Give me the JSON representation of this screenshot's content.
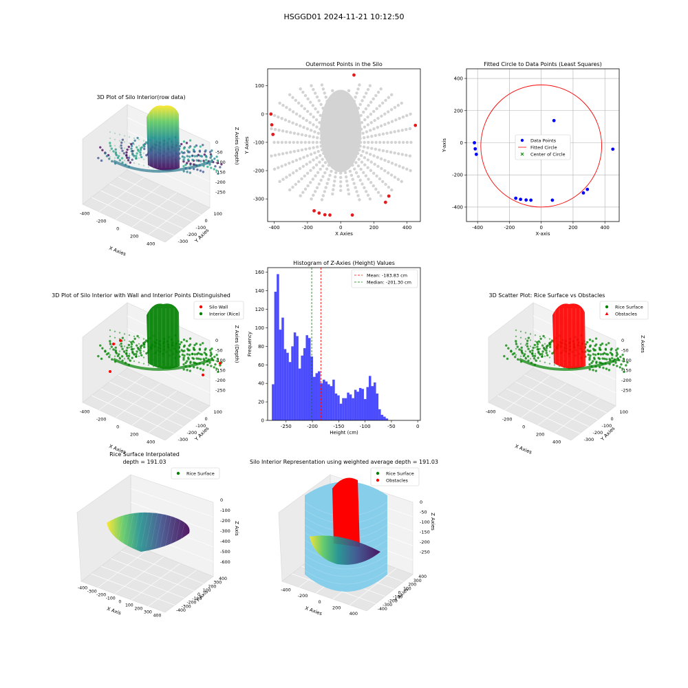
{
  "suptitle": "HSGGD01 2024-11-21 10:12:50",
  "chart_data": [
    {
      "type": "scatter3d",
      "title": "3D Plot of Silo Interior(row data)",
      "xlabel": "X Axies",
      "ylabel": "Y Axies",
      "zlabel": "Z Axies (Depth)",
      "xticks": [
        -400,
        -200,
        0,
        200,
        400
      ],
      "yticks": [
        100,
        0,
        -100,
        -200,
        -300
      ],
      "zticks": [
        0,
        -50,
        -100,
        -150,
        -200,
        -250
      ],
      "colormap": "viridis"
    },
    {
      "type": "scatter",
      "title": "Outermost Points in the Silo",
      "xlabel": "X Axies",
      "ylabel": "Y Axies",
      "xlim": [
        -440,
        480
      ],
      "ylim": [
        -380,
        160
      ],
      "xticks": [
        -400,
        -200,
        0,
        200,
        400
      ],
      "yticks": [
        100,
        0,
        -100,
        -200,
        -300
      ],
      "grid_color": "#d3d3d3",
      "outer_color": "#e41a1c",
      "outer_points": [
        [
          -420,
          0
        ],
        [
          -415,
          -38
        ],
        [
          -408,
          -72
        ],
        [
          80,
          138
        ],
        [
          450,
          -40
        ],
        [
          290,
          -290
        ],
        [
          270,
          -312
        ],
        [
          -160,
          -342
        ],
        [
          -130,
          -350
        ],
        [
          -95,
          -356
        ],
        [
          -65,
          -357
        ],
        [
          70,
          -357
        ]
      ]
    },
    {
      "type": "scatter",
      "title": "Fitted Circle to Data Points (Least Squares)",
      "xlabel": "X-axis",
      "ylabel": "Y-axis",
      "xlim": [
        -470,
        490
      ],
      "ylim": [
        -490,
        460
      ],
      "xticks": [
        -400,
        -200,
        0,
        200,
        400
      ],
      "yticks": [
        400,
        200,
        0,
        -200,
        -400
      ],
      "grid": true,
      "legend": [
        "Data Points",
        "Fitted Circle",
        "Center of Circle"
      ],
      "legend_position": "center",
      "data_points": [
        [
          -420,
          0
        ],
        [
          -415,
          -38
        ],
        [
          -408,
          -72
        ],
        [
          80,
          138
        ],
        [
          450,
          -40
        ],
        [
          290,
          -290
        ],
        [
          265,
          -312
        ],
        [
          -160,
          -345
        ],
        [
          -130,
          -352
        ],
        [
          -95,
          -356
        ],
        [
          -65,
          -357
        ],
        [
          70,
          -357
        ]
      ],
      "circle": {
        "cx": 0,
        "cy": -20,
        "r": 380
      },
      "colors": {
        "points": "#0000ff",
        "circle": "#ff0000",
        "center": "#008000"
      }
    },
    {
      "type": "scatter3d",
      "title": "3D Plot of Silo Interior with Wall and Interior Points Distinguished",
      "xlabel": "X Axies",
      "ylabel": "Y Axies",
      "zlabel": "Z Axies (Depth)",
      "xticks": [
        -400,
        -200,
        0,
        200,
        400
      ],
      "yticks": [
        100,
        0,
        -100,
        -200,
        -300
      ],
      "zticks": [
        0,
        -50,
        -100,
        -150,
        -200,
        -250
      ],
      "legend": [
        "Silo Wall",
        "Interior (Rice)"
      ],
      "legend_position": "upper right"
    },
    {
      "type": "histogram",
      "title": "Histogram of Z-Axies (Height) Values",
      "xlabel": "Height (cm)",
      "ylabel": "Frequency",
      "xlim": [
        -285,
        5
      ],
      "ylim": [
        0,
        165
      ],
      "xticks": [
        -250,
        -200,
        -150,
        -100,
        -50,
        0
      ],
      "yticks": [
        0,
        20,
        40,
        60,
        80,
        100,
        120,
        140,
        160
      ],
      "bin_start": -277,
      "bin_width": 4.6,
      "values": [
        39,
        139,
        158,
        98,
        111,
        77,
        73,
        63,
        80,
        95,
        91,
        56,
        70,
        78,
        92,
        89,
        69,
        47,
        51,
        53,
        40,
        44,
        42,
        39,
        37,
        44,
        29,
        27,
        18,
        24,
        24,
        30,
        28,
        24,
        33,
        31,
        35,
        34,
        23,
        36,
        48,
        37,
        41,
        29,
        12,
        6,
        4,
        2
      ],
      "mean": -183.83,
      "median": -201.3,
      "legend": [
        "Mean: -183.83 cm",
        "Median: -201.30 cm"
      ],
      "legend_position": "upper right",
      "colors": {
        "bars": "#0000ff",
        "mean": "#ff0000",
        "median": "#008000"
      }
    },
    {
      "type": "scatter3d",
      "title": "3D Scatter Plot: Rice Surface vs Obstacles",
      "xlabel": "X Axies",
      "ylabel": "Y Axies",
      "zlabel": "Z Axies",
      "xticks": [
        -400,
        -200,
        0,
        200,
        400
      ],
      "yticks": [
        100,
        0,
        -100,
        -200,
        -300
      ],
      "zticks": [
        0,
        -50,
        -100,
        -150,
        -200,
        -250
      ],
      "legend": [
        "Rice Surface",
        "Obstacles"
      ],
      "legend_position": "upper right"
    },
    {
      "type": "surface3d",
      "title": "Rice Surface Interpolated",
      "subtitle": "depth = 191.03",
      "xlabel": "X Axis",
      "ylabel": "Y Axis",
      "zlabel": "Z Axis",
      "xticks": [
        -400,
        -300,
        -200,
        -100,
        0,
        100,
        200,
        300,
        400
      ],
      "yticks": [
        400,
        300,
        200,
        100,
        0,
        -100,
        -200,
        -300,
        -400
      ],
      "zticks": [
        0,
        -100,
        -200,
        -300,
        -400,
        -500,
        -600
      ],
      "legend": [
        "Rice Surface"
      ],
      "legend_position": "upper right"
    },
    {
      "type": "surface3d",
      "title": "Silo Interior Representation using weighted average depth = 191.03",
      "xlabel": "X Axies",
      "ylabel": "Y Axies",
      "zlabel": "Z Axies",
      "xticks": [
        -400,
        -200,
        0,
        200,
        400
      ],
      "yticks": [
        400,
        300,
        200,
        100,
        0,
        -100,
        -200,
        -300,
        -400
      ],
      "zticks": [
        0,
        -50,
        -100,
        -150,
        -200,
        -250
      ],
      "legend": [
        "Rice Surface",
        "Obstacles"
      ],
      "legend_position": "upper right",
      "colors": {
        "cylinder": "#87ceeb"
      }
    }
  ]
}
